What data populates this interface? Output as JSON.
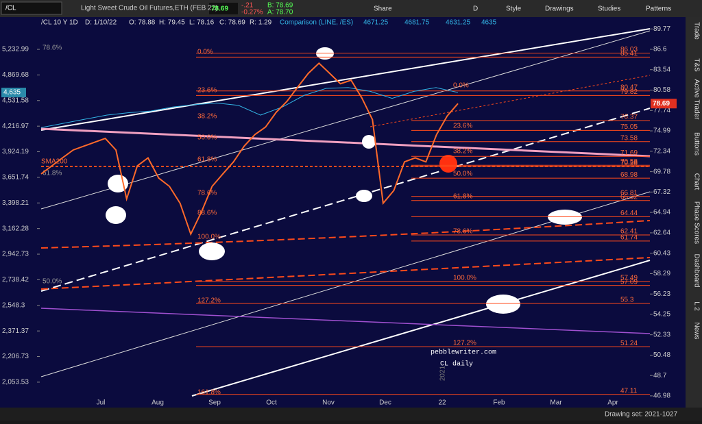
{
  "toolbar": {
    "symbol": "/CL",
    "description": "Light Sweet Crude Oil Futures,ETH (FEB 22)",
    "last": "78.69",
    "change": "-.21",
    "change_pct": "-0.27%",
    "bid": "B: 78.69",
    "ask": "A: 78.70",
    "buttons": [
      "Share",
      "D",
      "Style",
      "Drawings",
      "Studies",
      "Patterns"
    ]
  },
  "header": {
    "items": [
      "/CL 10 Y 1D",
      "D: 1/10/22",
      "O: 78.88",
      "H: 79.45",
      "L: 78.16",
      "C: 78.69",
      "R: 1.29"
    ],
    "comparison": "Comparison (LINE, /ES)",
    "comparison_values": [
      "4671.25",
      "4681.75",
      "4631.25",
      "4635"
    ]
  },
  "sidebar": [
    "Trade",
    "T&S",
    "Active Trader",
    "Buttons",
    "Chart",
    "Phase Scores",
    "Dashboard",
    "L 2",
    "News"
  ],
  "chart": {
    "type": "line",
    "log_scale": true,
    "price_axis": {
      "ylim": [
        46.02,
        91.66
      ],
      "ticks": [
        89.77,
        86.6,
        83.54,
        80.58,
        77.74,
        74.99,
        72.34,
        69.78,
        67.32,
        64.94,
        62.64,
        60.43,
        58.29,
        56.23,
        54.25,
        52.33,
        50.48,
        48.7,
        46.98
      ]
    },
    "comparison_axis": {
      "ylim": [
        1912,
        5729
      ],
      "ticks": [
        {
          "value": 5232.99,
          "label": "5,232.99"
        },
        {
          "value": 4869.68,
          "label": "4,869.68"
        },
        {
          "value": 4531.58,
          "label": "4,531.58"
        },
        {
          "value": 4216.97,
          "label": "4,216.97"
        },
        {
          "value": 3924.19,
          "label": "3,924.19"
        },
        {
          "value": 3651.74,
          "label": "3,651.74"
        },
        {
          "value": 3398.21,
          "label": "3,398.21"
        },
        {
          "value": 3162.28,
          "label": "3,162.28"
        },
        {
          "value": 2942.73,
          "label": "2,942.73"
        },
        {
          "value": 2738.42,
          "label": "2,738.42"
        },
        {
          "value": 2548.3,
          "label": "2,548.3"
        },
        {
          "value": 2371.37,
          "label": "2,371.37"
        },
        {
          "value": 2206.73,
          "label": "2,206.73"
        },
        {
          "value": 2053.53,
          "label": "2,053.53"
        }
      ]
    },
    "months": [
      "Jul",
      "Aug",
      "Sep",
      "Oct",
      "Nov",
      "Dec",
      "22",
      "Feb",
      "Mar",
      "Apr"
    ],
    "price": {
      "name": "/CL",
      "color": "#ff6a2a",
      "values": [
        69.5,
        70.5,
        71.5,
        72.5,
        73,
        73.5,
        74,
        72.5,
        66.5,
        70.5,
        71.5,
        69,
        68,
        66,
        62.5,
        65,
        68,
        69.5,
        71,
        73,
        74.5,
        75.5,
        77.5,
        79,
        81,
        83,
        84.5,
        83,
        81.5,
        82,
        79.5,
        76.5,
        66,
        67.5,
        71,
        71.5,
        71,
        74.5,
        77,
        78.69
      ]
    },
    "comparison": {
      "name": "/ES",
      "color": "#33b5e5",
      "values": [
        4200,
        4250,
        4300,
        4350,
        4380,
        4400,
        4450,
        4480,
        4500,
        4470,
        4350,
        4450,
        4600,
        4690,
        4700,
        4650,
        4560,
        4650,
        4700,
        4635
      ]
    },
    "last_price": {
      "value": 78.69,
      "label": "78.69"
    },
    "last_comparison": {
      "value": 4635,
      "label": "4,635"
    },
    "fib_labels_a": [
      "0.0%",
      "23.6%",
      "38.2%",
      "50.0%",
      "61.8%",
      "78.6%",
      "88.6%",
      "100.0%",
      "127.2%",
      "161.8%"
    ],
    "fib_labels_b": [
      "0.0%",
      "23.6%",
      "38.2%",
      "50.0%",
      "61.8%",
      "78.6%",
      "100.0%",
      "127.2%"
    ],
    "fib_labels_gray": [
      "78.6%",
      "61.8%",
      "50.0%"
    ],
    "levels": [
      86.03,
      85.41,
      80.47,
      79.82,
      76.37,
      75.05,
      73.58,
      71.69,
      70.58,
      70.38,
      68.98,
      66.81,
      66.32,
      64.44,
      62.41,
      61.74,
      57.49,
      57.09,
      55.3,
      51.24,
      47.11
    ],
    "sma_label": "SMA200",
    "watermark": [
      "pebblewriter.com",
      "CL daily"
    ],
    "year_label": "2021"
  },
  "footer": {
    "drawing_set": "Drawing set: 2021-1027"
  }
}
